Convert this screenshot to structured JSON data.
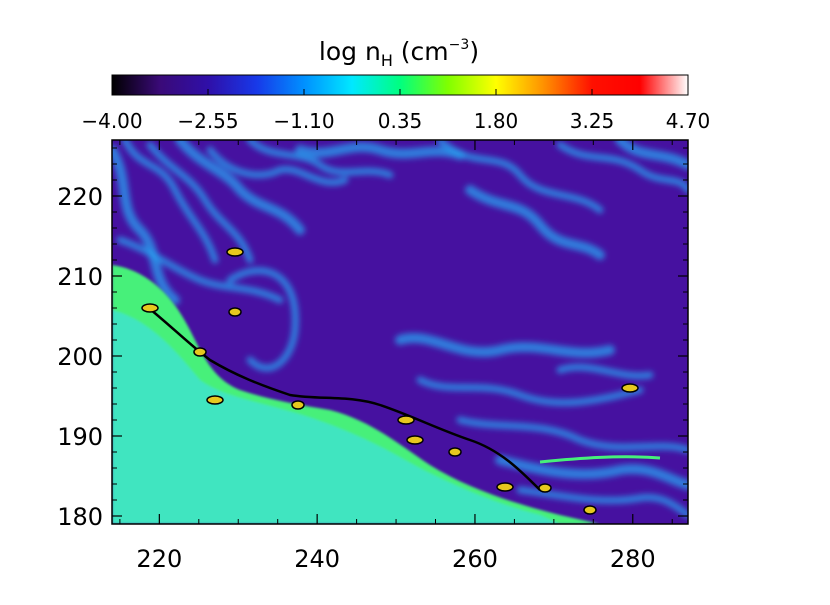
{
  "chart_data": {
    "type": "heatmap",
    "title": {
      "prefix": "log n",
      "subscript": "H",
      "unit_open": " (cm",
      "superscript": "−3",
      "unit_close": ")"
    },
    "colorbar": {
      "orientation": "horizontal",
      "range": [
        -4.0,
        4.7
      ],
      "tick_labels": [
        "−4.00",
        "−2.55",
        "−1.10",
        "0.35",
        "1.80",
        "3.25",
        "4.70"
      ],
      "tick_values": [
        -4.0,
        -2.55,
        -1.1,
        0.35,
        1.8,
        3.25,
        4.7
      ],
      "colormap_stops": [
        "#000000",
        "#3a0a78",
        "#2f0fa8",
        "#1838e8",
        "#0090ff",
        "#00e8ff",
        "#00ff80",
        "#80ff00",
        "#ffff00",
        "#ff9000",
        "#ff1000",
        "#ff0000",
        "#ffffff"
      ]
    },
    "xlim": [
      214,
      287
    ],
    "ylim": [
      179,
      227
    ],
    "x_ticks": [
      220,
      240,
      260,
      280
    ],
    "y_ticks": [
      180,
      190,
      200,
      210,
      220
    ],
    "x_tick_labels": [
      "220",
      "240",
      "260",
      "280"
    ],
    "y_tick_labels": [
      "180",
      "190",
      "200",
      "210",
      "220"
    ],
    "xlabel": "",
    "ylabel": "",
    "colors": {
      "background": "#4611a0",
      "dense_region": "#3fe5c0",
      "dense_edge": "#46f07a",
      "filament": "#2aa0f0",
      "clump": "#e6c81e"
    }
  }
}
